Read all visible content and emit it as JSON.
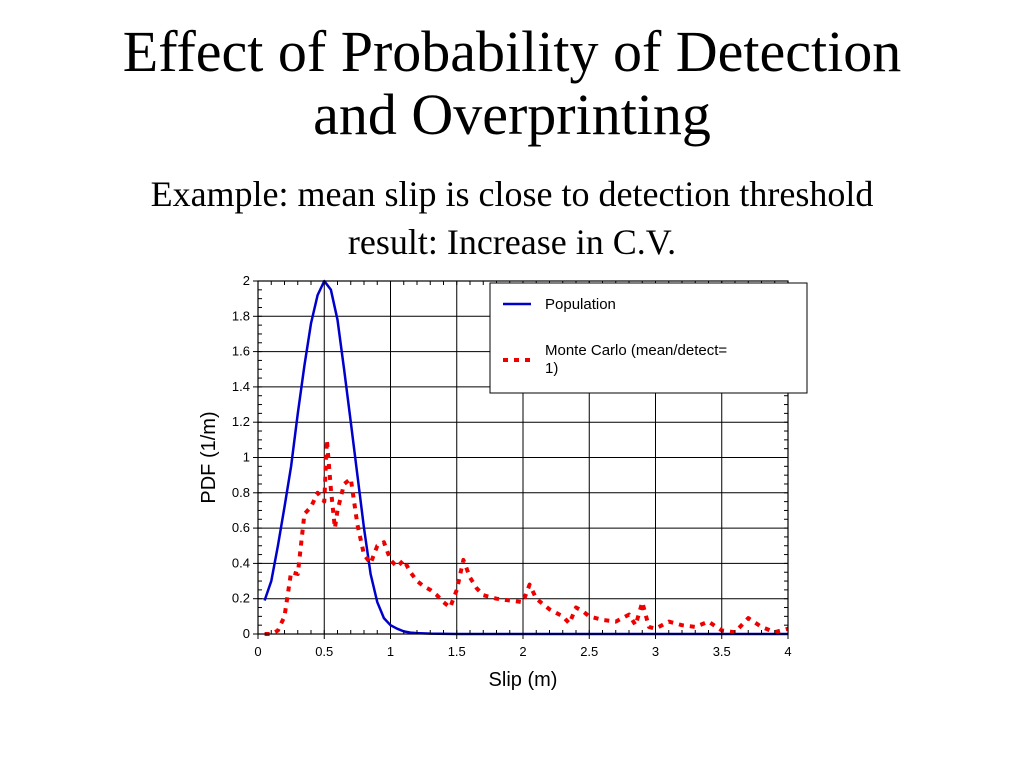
{
  "slide": {
    "title_line1": "Effect of Probability of Detection",
    "title_line2": "and Overprinting",
    "subtitle_line1": "Example: mean slip is close to detection threshold",
    "subtitle_line2": "result: Increase in C.V."
  },
  "chart_data": {
    "type": "line",
    "xlabel": "Slip (m)",
    "ylabel": "PDF (1/m)",
    "xlim": [
      0,
      4
    ],
    "ylim": [
      0,
      2
    ],
    "x_ticks": [
      "0",
      "0.5",
      "1",
      "1.5",
      "2",
      "2.5",
      "3",
      "3.5",
      "4"
    ],
    "y_ticks": [
      "0",
      "0.2",
      "0.4",
      "0.6",
      "0.8",
      "1",
      "1.2",
      "1.4",
      "1.6",
      "1.8",
      "2"
    ],
    "grid": true,
    "legend_position": "top-right",
    "series": [
      {
        "name": "Population",
        "color": "#0000cc",
        "style": "solid",
        "x": [
          0.05,
          0.1,
          0.15,
          0.2,
          0.25,
          0.3,
          0.35,
          0.4,
          0.45,
          0.5,
          0.55,
          0.6,
          0.65,
          0.7,
          0.75,
          0.8,
          0.85,
          0.9,
          0.95,
          1.0,
          1.05,
          1.1,
          1.15,
          1.2,
          1.3,
          1.5,
          2.0,
          2.5,
          3.0,
          3.5,
          4.0
        ],
        "y": [
          0.19,
          0.3,
          0.5,
          0.72,
          0.95,
          1.25,
          1.52,
          1.76,
          1.92,
          2.0,
          1.95,
          1.78,
          1.5,
          1.2,
          0.9,
          0.6,
          0.34,
          0.18,
          0.09,
          0.05,
          0.03,
          0.015,
          0.008,
          0.005,
          0.002,
          0.0,
          0.0,
          0.0,
          0.0,
          0.0,
          0.0
        ]
      },
      {
        "name": "Monte Carlo (mean/detect= 1)",
        "color": "#ee0000",
        "style": "dotted",
        "x": [
          0.05,
          0.1,
          0.15,
          0.2,
          0.25,
          0.3,
          0.35,
          0.4,
          0.45,
          0.5,
          0.52,
          0.55,
          0.58,
          0.6,
          0.65,
          0.7,
          0.75,
          0.8,
          0.85,
          0.9,
          0.95,
          1.0,
          1.05,
          1.1,
          1.15,
          1.2,
          1.25,
          1.3,
          1.35,
          1.4,
          1.45,
          1.5,
          1.55,
          1.6,
          1.65,
          1.7,
          1.8,
          1.9,
          2.0,
          2.05,
          2.1,
          2.2,
          2.3,
          2.35,
          2.4,
          2.45,
          2.5,
          2.6,
          2.7,
          2.8,
          2.85,
          2.9,
          2.95,
          3.0,
          3.1,
          3.2,
          3.3,
          3.4,
          3.5,
          3.6,
          3.7,
          3.8,
          3.9,
          4.0
        ],
        "y": [
          0.0,
          0.0,
          0.02,
          0.1,
          0.35,
          0.34,
          0.68,
          0.72,
          0.8,
          0.75,
          1.1,
          0.82,
          0.6,
          0.7,
          0.85,
          0.88,
          0.62,
          0.45,
          0.4,
          0.5,
          0.52,
          0.42,
          0.38,
          0.42,
          0.35,
          0.3,
          0.27,
          0.25,
          0.22,
          0.18,
          0.15,
          0.25,
          0.42,
          0.32,
          0.26,
          0.22,
          0.2,
          0.19,
          0.18,
          0.28,
          0.2,
          0.14,
          0.1,
          0.06,
          0.15,
          0.13,
          0.1,
          0.08,
          0.07,
          0.11,
          0.05,
          0.18,
          0.04,
          0.03,
          0.07,
          0.05,
          0.04,
          0.07,
          0.02,
          0.01,
          0.09,
          0.04,
          0.01,
          0.03
        ]
      }
    ]
  }
}
